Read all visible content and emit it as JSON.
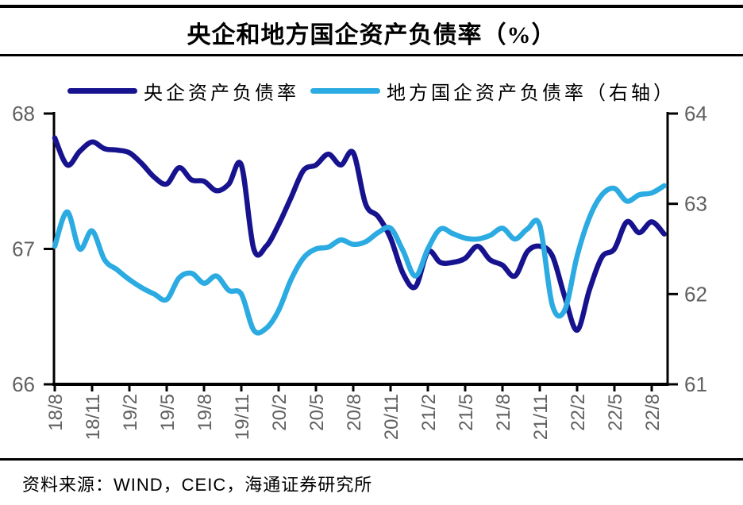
{
  "header": {
    "title": "央企和地方国企资产负债率（%）"
  },
  "legend": [
    {
      "id": "central-soe",
      "label": "央企资产负债率",
      "color": "#17138F"
    },
    {
      "id": "local-soe",
      "label": "地方国企资产负债率（右轴）",
      "color": "#2BABE2"
    }
  ],
  "footer": {
    "source": "资料来源：WIND，CEIC，海通证券研究所"
  },
  "colors": {
    "central_soe_line": "#17138F",
    "local_soe_line": "#2BABE2",
    "axis_line": "#000000",
    "axis_label": "#606060"
  },
  "chart_data": {
    "type": "line",
    "title": "央企和地方国企资产负债率（%）",
    "legend_position": "top",
    "grid": false,
    "x_tick_labels": [
      "18/8",
      "18/11",
      "19/2",
      "19/5",
      "19/8",
      "19/11",
      "20/2",
      "20/5",
      "20/8",
      "20/11",
      "21/2",
      "21/5",
      "21/8",
      "21/11",
      "22/2",
      "22/5",
      "22/8"
    ],
    "months": [
      "18/8",
      "18/9",
      "18/10",
      "18/11",
      "18/12",
      "19/1",
      "19/2",
      "19/3",
      "19/4",
      "19/5",
      "19/6",
      "19/7",
      "19/8",
      "19/9",
      "19/10",
      "19/11",
      "19/12",
      "20/1",
      "20/2",
      "20/3",
      "20/4",
      "20/5",
      "20/6",
      "20/7",
      "20/8",
      "20/9",
      "20/10",
      "20/11",
      "20/12",
      "21/1",
      "21/2",
      "21/3",
      "21/4",
      "21/5",
      "21/6",
      "21/7",
      "21/8",
      "21/9",
      "21/10",
      "21/11",
      "21/12",
      "22/1",
      "22/2",
      "22/3",
      "22/4",
      "22/5",
      "22/6",
      "22/7",
      "22/8",
      "22/9"
    ],
    "left_axis": {
      "min": 66,
      "max": 68,
      "ticks": [
        68,
        67,
        66
      ]
    },
    "right_axis": {
      "min": 61,
      "max": 64,
      "ticks": [
        64,
        63,
        62,
        61
      ]
    },
    "series": [
      {
        "id": "central-soe",
        "name": "央企资产负债率",
        "axis": "left",
        "color": "#17138F",
        "values": [
          67.82,
          67.62,
          67.72,
          67.79,
          67.74,
          67.73,
          67.71,
          67.63,
          67.53,
          67.48,
          67.6,
          67.51,
          67.5,
          67.43,
          67.48,
          67.62,
          67.0,
          67.02,
          67.18,
          67.38,
          67.58,
          67.62,
          67.7,
          67.62,
          67.71,
          67.33,
          67.24,
          67.08,
          66.82,
          66.72,
          66.98,
          66.9,
          66.9,
          66.93,
          67.02,
          66.92,
          66.88,
          66.8,
          66.98,
          67.02,
          66.95,
          66.65,
          66.4,
          66.7,
          66.94,
          67.0,
          67.2,
          67.12,
          67.2,
          67.11
        ]
      },
      {
        "id": "local-soe",
        "name": "地方国企资产负债率（右轴）",
        "axis": "right",
        "color": "#2BABE2",
        "values": [
          62.53,
          62.91,
          62.5,
          62.7,
          62.38,
          62.27,
          62.16,
          62.07,
          62.0,
          61.94,
          62.18,
          62.23,
          62.12,
          62.2,
          62.04,
          62.0,
          61.6,
          61.62,
          61.82,
          62.16,
          62.4,
          62.5,
          62.52,
          62.6,
          62.55,
          62.58,
          62.68,
          62.73,
          62.48,
          62.2,
          62.5,
          62.72,
          62.67,
          62.62,
          62.61,
          62.65,
          62.73,
          62.61,
          62.72,
          62.76,
          61.88,
          61.82,
          62.42,
          62.85,
          63.1,
          63.17,
          63.03,
          63.1,
          63.12,
          63.2
        ]
      }
    ]
  }
}
